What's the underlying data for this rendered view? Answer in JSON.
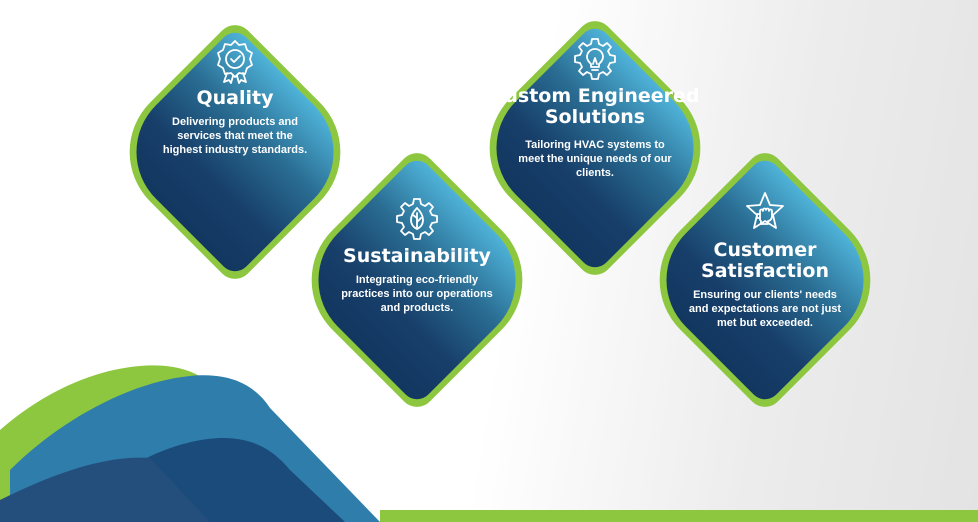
{
  "colors": {
    "accent_green": "#8dc63f",
    "navy": "#123760",
    "teal": "#4fb3d9"
  },
  "cards": [
    {
      "icon": "badge-check-icon",
      "title": "Quality",
      "description": "Delivering products and services that meet the highest industry standards."
    },
    {
      "icon": "gear-lightbulb-icon",
      "title": "Custom Engineered Solutions",
      "description": "Tailoring HVAC systems to meet the unique needs of our clients."
    },
    {
      "icon": "gear-leaf-icon",
      "title": "Sustainability",
      "description": "Integrating eco-friendly practices into our operations and products."
    },
    {
      "icon": "star-fist-icon",
      "title": "Customer Satisfaction",
      "description": "Ensuring our clients' needs and expectations are not just met but exceeded."
    }
  ]
}
